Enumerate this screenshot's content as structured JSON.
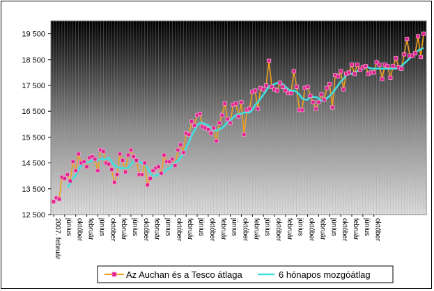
{
  "chart_data": {
    "type": "line",
    "title": "",
    "xlabel": "",
    "ylabel": "",
    "ylim": [
      12500,
      20000
    ],
    "yticks": [
      "12 500",
      "13 500",
      "14 500",
      "15 500",
      "16 500",
      "17 500",
      "18 500",
      "19 500"
    ],
    "ytick_values": [
      12500,
      13500,
      14500,
      15500,
      16500,
      17500,
      18500,
      19500
    ],
    "x_tick_labels": [
      "2007. február",
      "június",
      "október",
      "február",
      "június",
      "október",
      "február",
      "június",
      "október",
      "február",
      "június",
      "október",
      "február",
      "június",
      "október",
      "február",
      "június",
      "október",
      "február",
      "június",
      "október",
      "február",
      "június",
      "október",
      "február",
      "június",
      "október",
      "február",
      "június",
      "október"
    ],
    "legend_position": "bottom",
    "colors": {
      "series1_line": "#f0a020",
      "series1_marker": "#e0208c",
      "series2_line": "#40e0e0"
    },
    "series": [
      {
        "name": "Az Auchan és a Tesco átlaga",
        "values": [
          13000,
          13150,
          13100,
          13950,
          13900,
          14050,
          13800,
          14550,
          14200,
          14850,
          14500,
          14550,
          14350,
          14700,
          14750,
          14650,
          14200,
          15000,
          14950,
          14500,
          14450,
          14250,
          13750,
          14050,
          14850,
          14600,
          14150,
          14800,
          15000,
          14750,
          14600,
          14050,
          14050,
          14500,
          13650,
          13900,
          14200,
          14300,
          14350,
          14100,
          14800,
          14550,
          14550,
          14650,
          14400,
          15000,
          15200,
          14900,
          15650,
          15600,
          16100,
          15950,
          16350,
          16400,
          15900,
          15850,
          15800,
          15650,
          15850,
          15350,
          16050,
          16350,
          16800,
          16200,
          16050,
          16750,
          16800,
          16300,
          16850,
          15600,
          16550,
          16600,
          17250,
          17300,
          16600,
          17400,
          17350,
          17500,
          18450,
          17450,
          17350,
          17300,
          17600,
          17450,
          17300,
          17200,
          17200,
          18050,
          17450,
          16550,
          16550,
          17400,
          17450,
          17100,
          16850,
          16600,
          16850,
          17150,
          16950,
          17400,
          17550,
          16650,
          17900,
          17850,
          18050,
          17350,
          17950,
          18000,
          18300,
          17950,
          18300,
          18100,
          18200,
          18250,
          17950,
          18000,
          18000,
          18400,
          18300,
          17750,
          18300,
          18250,
          17800,
          18250,
          18550,
          18200,
          18150,
          18700,
          19300,
          18650,
          18650,
          18750,
          19400,
          18600,
          19500
        ]
      },
      {
        "name": "6 hónapos mozgóátlag",
        "values": [
          null,
          null,
          null,
          null,
          null,
          13550,
          13700,
          13900,
          14000,
          14250,
          14400,
          14500,
          14500,
          14550,
          14600,
          14650,
          14600,
          14650,
          14650,
          14650,
          14700,
          14550,
          14400,
          14350,
          14300,
          14300,
          14300,
          14300,
          14450,
          14550,
          14550,
          14550,
          14500,
          14450,
          14300,
          14100,
          14000,
          14000,
          14050,
          14100,
          14150,
          14250,
          14300,
          14400,
          14500,
          14600,
          14700,
          14850,
          15100,
          15300,
          15550,
          15750,
          15950,
          16050,
          16050,
          16000,
          15950,
          15850,
          15750,
          15750,
          15800,
          15850,
          15950,
          16100,
          16150,
          16250,
          16350,
          16400,
          16400,
          16450,
          16450,
          16450,
          16550,
          16750,
          16850,
          17000,
          17150,
          17300,
          17450,
          17500,
          17550,
          17600,
          17600,
          17550,
          17450,
          17350,
          17300,
          17300,
          17250,
          17150,
          17000,
          16950,
          16950,
          17050,
          17050,
          17050,
          17000,
          16900,
          16900,
          17000,
          17100,
          17200,
          17350,
          17500,
          17650,
          17750,
          17900,
          17950,
          17950,
          18000,
          18050,
          18100,
          18150,
          18200,
          18200,
          18150,
          18150,
          18150,
          18150,
          18150,
          18150,
          18150,
          18150,
          18150,
          18150,
          18200,
          18250,
          18350,
          18450,
          18550,
          18650,
          18750,
          18850,
          18900,
          18950
        ]
      }
    ]
  }
}
